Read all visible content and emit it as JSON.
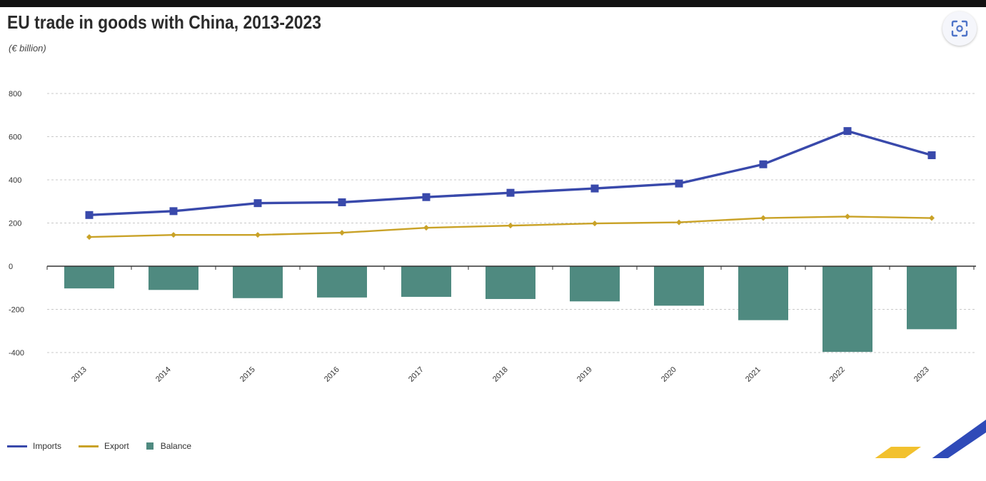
{
  "header": {
    "title": "EU trade in goods with China, 2013-2023",
    "subtitle": "(€ billion)"
  },
  "toolbar": {
    "lens_icon": "google-lens-icon"
  },
  "legend": {
    "imports": "Imports",
    "export": "Export",
    "balance": "Balance"
  },
  "colors": {
    "imports": "#3949ab",
    "export": "#c9a227",
    "balance": "#4f8a80"
  },
  "caption": "",
  "chart_data": {
    "type": "line",
    "categories": [
      "2013",
      "2014",
      "2015",
      "2016",
      "2017",
      "2018",
      "2019",
      "2020",
      "2021",
      "2022",
      "2023"
    ],
    "series": [
      {
        "name": "Imports",
        "type": "line",
        "values": [
          237,
          255,
          292,
          296,
          320,
          340,
          360,
          383,
          472,
          626,
          514
        ]
      },
      {
        "name": "Export",
        "type": "line",
        "values": [
          135,
          145,
          145,
          155,
          178,
          188,
          198,
          203,
          223,
          230,
          223
        ]
      },
      {
        "name": "Balance",
        "type": "bar",
        "values": [
          -103,
          -110,
          -148,
          -145,
          -142,
          -152,
          -163,
          -183,
          -250,
          -397,
          -292
        ]
      }
    ],
    "y_ticks": [
      "800",
      "600",
      "400",
      "200",
      "0",
      "-200",
      "-400"
    ],
    "ylim": [
      -400,
      800
    ],
    "grid": true,
    "legend_position": "bottom-left"
  }
}
